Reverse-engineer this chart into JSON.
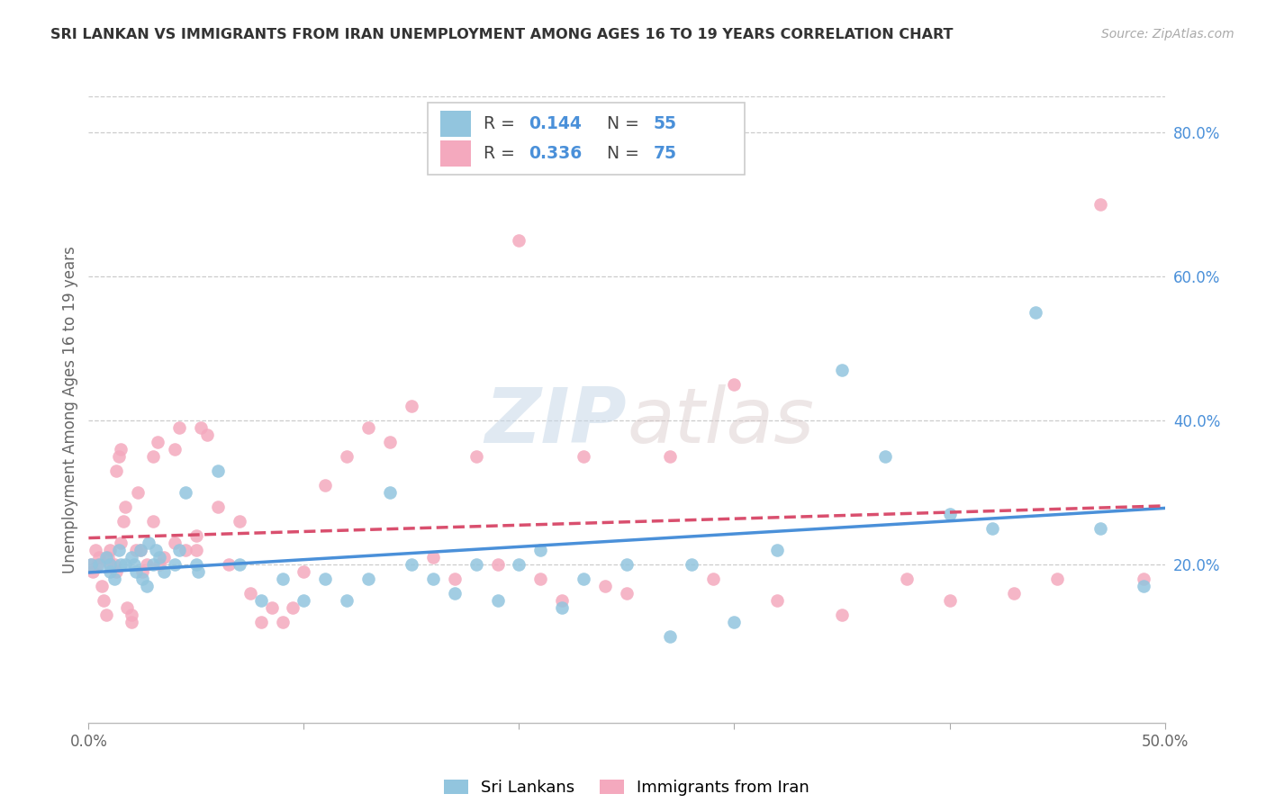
{
  "title": "SRI LANKAN VS IMMIGRANTS FROM IRAN UNEMPLOYMENT AMONG AGES 16 TO 19 YEARS CORRELATION CHART",
  "source": "Source: ZipAtlas.com",
  "ylabel": "Unemployment Among Ages 16 to 19 years",
  "xlim": [
    0.0,
    0.5
  ],
  "ylim": [
    -0.02,
    0.85
  ],
  "xtick_positions": [
    0.0,
    0.1,
    0.2,
    0.3,
    0.4,
    0.5
  ],
  "xtick_labels": [
    "0.0%",
    "",
    "",
    "",
    "",
    "50.0%"
  ],
  "ytick_right_positions": [
    0.2,
    0.4,
    0.6,
    0.8
  ],
  "ytick_right_labels": [
    "20.0%",
    "40.0%",
    "60.0%",
    "80.0%"
  ],
  "sri_lankan_R": 0.144,
  "sri_lankan_N": 55,
  "iran_R": 0.336,
  "iran_N": 75,
  "sri_lankan_scatter_color": "#92C5DE",
  "iran_scatter_color": "#F4A9BE",
  "sri_lankan_line_color": "#4A90D9",
  "iran_line_color": "#D94F6E",
  "watermark_zip": "ZIP",
  "watermark_atlas": "atlas",
  "background_color": "#ffffff",
  "sri_lankan_x": [
    0.001,
    0.005,
    0.008,
    0.01,
    0.01,
    0.012,
    0.014,
    0.015,
    0.017,
    0.02,
    0.021,
    0.022,
    0.024,
    0.025,
    0.027,
    0.028,
    0.03,
    0.031,
    0.033,
    0.035,
    0.04,
    0.042,
    0.045,
    0.05,
    0.051,
    0.06,
    0.07,
    0.08,
    0.09,
    0.1,
    0.11,
    0.12,
    0.13,
    0.14,
    0.15,
    0.16,
    0.17,
    0.18,
    0.19,
    0.2,
    0.21,
    0.22,
    0.23,
    0.25,
    0.27,
    0.28,
    0.3,
    0.32,
    0.35,
    0.37,
    0.4,
    0.42,
    0.44,
    0.47,
    0.49
  ],
  "sri_lankan_y": [
    0.2,
    0.2,
    0.21,
    0.2,
    0.19,
    0.18,
    0.22,
    0.2,
    0.2,
    0.21,
    0.2,
    0.19,
    0.22,
    0.18,
    0.17,
    0.23,
    0.2,
    0.22,
    0.21,
    0.19,
    0.2,
    0.22,
    0.3,
    0.2,
    0.19,
    0.33,
    0.2,
    0.15,
    0.18,
    0.15,
    0.18,
    0.15,
    0.18,
    0.3,
    0.2,
    0.18,
    0.16,
    0.2,
    0.15,
    0.2,
    0.22,
    0.14,
    0.18,
    0.2,
    0.1,
    0.2,
    0.12,
    0.22,
    0.47,
    0.35,
    0.27,
    0.25,
    0.55,
    0.25,
    0.17
  ],
  "iran_x": [
    0.001,
    0.002,
    0.003,
    0.004,
    0.005,
    0.006,
    0.007,
    0.008,
    0.009,
    0.01,
    0.01,
    0.012,
    0.013,
    0.013,
    0.014,
    0.015,
    0.015,
    0.016,
    0.017,
    0.018,
    0.02,
    0.02,
    0.022,
    0.023,
    0.024,
    0.025,
    0.027,
    0.03,
    0.03,
    0.032,
    0.033,
    0.035,
    0.04,
    0.04,
    0.042,
    0.045,
    0.05,
    0.05,
    0.052,
    0.055,
    0.06,
    0.065,
    0.07,
    0.075,
    0.08,
    0.085,
    0.09,
    0.095,
    0.1,
    0.11,
    0.12,
    0.13,
    0.14,
    0.15,
    0.16,
    0.17,
    0.18,
    0.19,
    0.2,
    0.21,
    0.22,
    0.23,
    0.24,
    0.25,
    0.27,
    0.29,
    0.3,
    0.32,
    0.35,
    0.38,
    0.4,
    0.43,
    0.45,
    0.47,
    0.49
  ],
  "iran_y": [
    0.2,
    0.19,
    0.22,
    0.2,
    0.21,
    0.17,
    0.15,
    0.13,
    0.21,
    0.2,
    0.22,
    0.2,
    0.19,
    0.33,
    0.35,
    0.36,
    0.23,
    0.26,
    0.28,
    0.14,
    0.13,
    0.12,
    0.22,
    0.3,
    0.22,
    0.19,
    0.2,
    0.26,
    0.35,
    0.37,
    0.2,
    0.21,
    0.23,
    0.36,
    0.39,
    0.22,
    0.22,
    0.24,
    0.39,
    0.38,
    0.28,
    0.2,
    0.26,
    0.16,
    0.12,
    0.14,
    0.12,
    0.14,
    0.19,
    0.31,
    0.35,
    0.39,
    0.37,
    0.42,
    0.21,
    0.18,
    0.35,
    0.2,
    0.65,
    0.18,
    0.15,
    0.35,
    0.17,
    0.16,
    0.35,
    0.18,
    0.45,
    0.15,
    0.13,
    0.18,
    0.15,
    0.16,
    0.18,
    0.7,
    0.18
  ]
}
